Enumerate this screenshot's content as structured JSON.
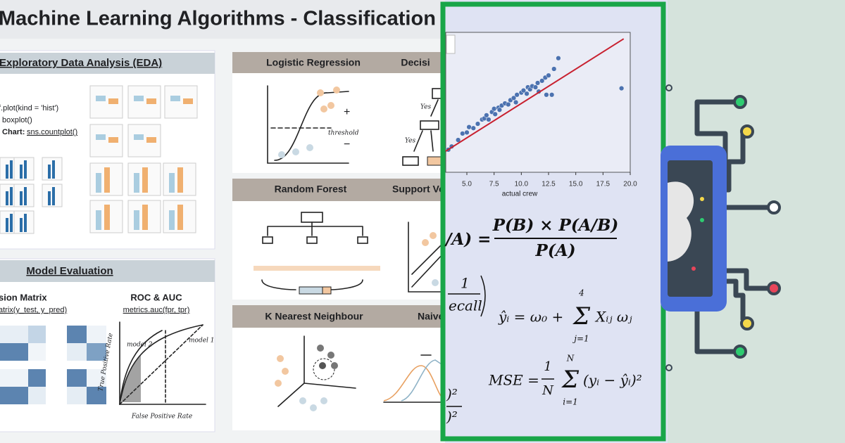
{
  "collage": {
    "cheatsheet": {
      "title": "Machine Learning Algorithms - Classification",
      "eda": {
        "heading": "Exploratory Data Analysis (EDA)",
        "lines": [
          "f.plot(kind = 'hist')",
          "boxplot()"
        ],
        "chart_label": "Chart:",
        "chart_code": "sns.countplot()"
      },
      "evaluation": {
        "heading": "Model Evaluation",
        "confusion_title": "sion Matrix",
        "confusion_code": "atrix(y_test, y_pred)",
        "roc_title": "ROC & AUC",
        "roc_code": "metrics.auc(fpr, tpr)",
        "roc_sketch": {
          "y_label": "True Positive Rate",
          "x_label": "False Positive Rate",
          "model1": "model 1",
          "model2": "model 2"
        }
      },
      "algorithms": [
        "Logistic Regression",
        "Decisi",
        "Random Forest",
        "Support Vec",
        "K Nearest Neighbour",
        "Naive"
      ],
      "sketch_labels": {
        "threshold": "threshold",
        "yes": "Yes"
      }
    },
    "scatter": {
      "x_label": "actual crew",
      "xlim": [
        3.06,
        20
      ],
      "ylim": [
        3,
        16
      ],
      "xticks": [
        {
          "value": 5,
          "label": "5.0"
        },
        {
          "value": 7.5,
          "label": "7.5"
        },
        {
          "value": 10,
          "label": "10.0"
        },
        {
          "value": 12.5,
          "label": "12.5"
        },
        {
          "value": 15,
          "label": "15.0"
        },
        {
          "value": 17.5,
          "label": "17.5"
        },
        {
          "value": 20,
          "label": "20.0"
        }
      ],
      "point_color": "#4c72b0",
      "line_color": "#c8202f",
      "x": [
        3.3,
        3.6,
        4.2,
        4.6,
        5.0,
        5.2,
        5.6,
        6.0,
        6.4,
        6.6,
        6.8,
        7.0,
        7.3,
        7.5,
        7.6,
        7.9,
        8.0,
        8.2,
        8.5,
        8.8,
        9.0,
        9.3,
        9.5,
        9.6,
        10.0,
        10.2,
        10.5,
        10.6,
        10.8,
        11.0,
        11.3,
        11.5,
        11.6,
        11.9,
        12.2,
        12.3,
        12.5,
        12.8,
        13.0,
        13.4,
        19.2
      ],
      "y": [
        5.1,
        5.4,
        6.0,
        6.6,
        6.7,
        7.2,
        7.1,
        7.5,
        7.9,
        8.0,
        8.3,
        7.9,
        8.6,
        8.9,
        8.4,
        9.0,
        8.8,
        9.2,
        9.4,
        9.3,
        9.7,
        9.9,
        9.5,
        10.2,
        10.4,
        10.6,
        10.3,
        10.9,
        10.7,
        11.0,
        10.9,
        11.3,
        10.5,
        11.5,
        11.8,
        10.2,
        12.0,
        10.2,
        12.6,
        13.6,
        10.8
      ],
      "fit": {
        "x": [
          3.06,
          19.4
        ],
        "y": [
          4.96,
          15.4
        ]
      }
    },
    "formulas": {
      "bayes_prefix": "/A) =",
      "bayes_numerator": "P(B) × P(A/B)",
      "bayes_denominator": "P(A)",
      "recall_one": "1",
      "recall_text": "ecall",
      "regression_lhs": "ŷᵢ = ω₀ +",
      "regression_upper": "4",
      "regression_lower": "j=1",
      "regression_term": "Xᵢⱼ ωⱼ",
      "mse_lhs": "MSE =",
      "mse_one": "1",
      "mse_n": "N",
      "mse_upper": "N",
      "mse_lower": "i=1",
      "mse_term": "(yᵢ − ŷᵢ)²",
      "fragment_a": ")²",
      "fragment_b": ")²"
    }
  }
}
